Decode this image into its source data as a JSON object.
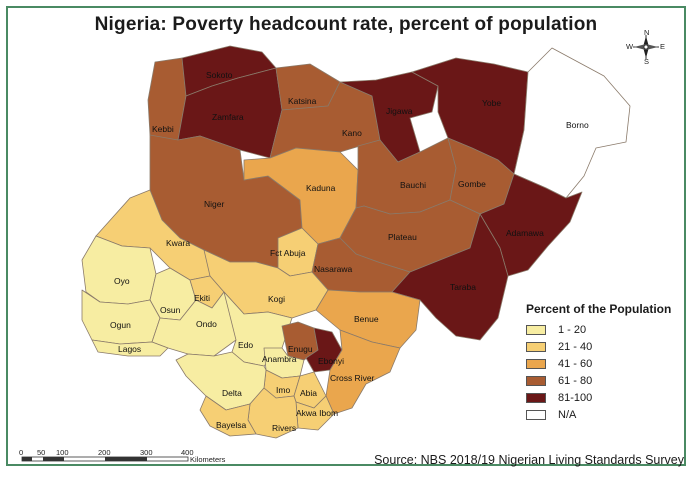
{
  "title": "Nigeria: Poverty headcount rate, percent of population",
  "source": "Source: NBS 2018/19 Nigerian Living Standards Survey",
  "legend": {
    "title": "Percent of the Population",
    "items": [
      {
        "label": "1 - 20",
        "color": "#f7eda2"
      },
      {
        "label": "21 - 40",
        "color": "#f6cf74"
      },
      {
        "label": "41 - 60",
        "color": "#eaa64d"
      },
      {
        "label": "61 - 80",
        "color": "#a85c32"
      },
      {
        "label": "81-100",
        "color": "#6a1717"
      },
      {
        "label": "N/A",
        "color": "#ffffff"
      }
    ]
  },
  "scale": {
    "ticks": [
      "0",
      "50",
      "100",
      "200",
      "300",
      "400"
    ],
    "unit": "Kilometers"
  },
  "compass": {
    "n": "N",
    "s": "S",
    "e": "E",
    "w": "W"
  },
  "states": [
    {
      "name": "Sokoto",
      "color": "#6a1717"
    },
    {
      "name": "Zamfara",
      "color": "#6a1717"
    },
    {
      "name": "Kebbi",
      "color": "#a85c32"
    },
    {
      "name": "Katsina",
      "color": "#a85c32"
    },
    {
      "name": "Kano",
      "color": "#a85c32"
    },
    {
      "name": "Jigawa",
      "color": "#6a1717"
    },
    {
      "name": "Yobe",
      "color": "#6a1717"
    },
    {
      "name": "Borno",
      "color": "#ffffff"
    },
    {
      "name": "Kaduna",
      "color": "#eaa64d"
    },
    {
      "name": "Bauchi",
      "color": "#a85c32"
    },
    {
      "name": "Gombe",
      "color": "#a85c32"
    },
    {
      "name": "Niger",
      "color": "#a85c32"
    },
    {
      "name": "Kwara",
      "color": "#f6cf74"
    },
    {
      "name": "Fct Abuja",
      "color": "#f6cf74"
    },
    {
      "name": "Nasarawa",
      "color": "#a85c32"
    },
    {
      "name": "Plateau",
      "color": "#a85c32"
    },
    {
      "name": "Adamawa",
      "color": "#6a1717"
    },
    {
      "name": "Taraba",
      "color": "#6a1717"
    },
    {
      "name": "Oyo",
      "color": "#f7eda2"
    },
    {
      "name": "Osun",
      "color": "#f7eda2"
    },
    {
      "name": "Ekiti",
      "color": "#f6cf74"
    },
    {
      "name": "Kogi",
      "color": "#f6cf74"
    },
    {
      "name": "Benue",
      "color": "#eaa64d"
    },
    {
      "name": "Ogun",
      "color": "#f7eda2"
    },
    {
      "name": "Ondo",
      "color": "#f7eda2"
    },
    {
      "name": "Edo",
      "color": "#f7eda2"
    },
    {
      "name": "Lagos",
      "color": "#f7eda2"
    },
    {
      "name": "Enugu",
      "color": "#a85c32"
    },
    {
      "name": "Ebonyi",
      "color": "#6a1717"
    },
    {
      "name": "Anambra",
      "color": "#f7eda2"
    },
    {
      "name": "Delta",
      "color": "#f7eda2"
    },
    {
      "name": "Imo",
      "color": "#f6cf74"
    },
    {
      "name": "Abia",
      "color": "#f6cf74"
    },
    {
      "name": "Cross River",
      "color": "#eaa64d"
    },
    {
      "name": "Akwa Ibom",
      "color": "#f6cf74"
    },
    {
      "name": "Bayelsa",
      "color": "#f6cf74"
    },
    {
      "name": "Rivers",
      "color": "#f6cf74"
    }
  ]
}
